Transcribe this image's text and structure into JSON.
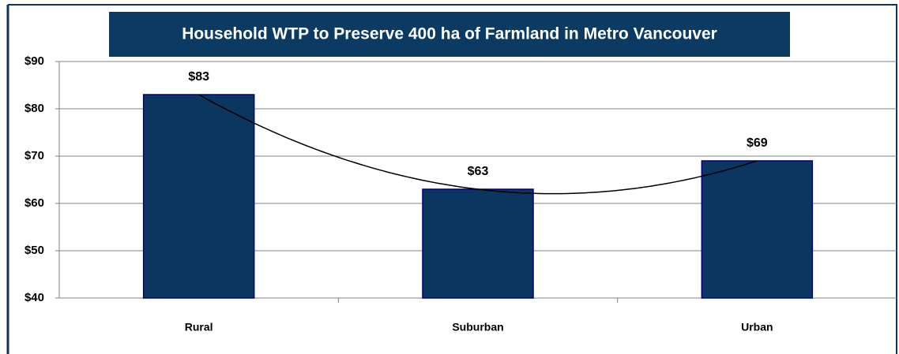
{
  "chart_data": {
    "type": "bar",
    "title": "Household WTP to Preserve 400 ha of Farmland in Metro Vancouver",
    "categories": [
      "Rural",
      "Suburban",
      "Urban"
    ],
    "values": [
      83,
      63,
      69
    ],
    "value_labels": [
      "$83",
      "$63",
      "$69"
    ],
    "color": "#0b3660",
    "ylim": [
      40,
      90
    ],
    "yticks": [
      {
        "value": 40,
        "label": "$40"
      },
      {
        "value": 50,
        "label": "$50"
      },
      {
        "value": 60,
        "label": "$60"
      },
      {
        "value": 70,
        "label": "$70"
      },
      {
        "value": 80,
        "label": "$80"
      },
      {
        "value": 90,
        "label": "$90"
      }
    ],
    "grid": true,
    "trendline": true
  }
}
